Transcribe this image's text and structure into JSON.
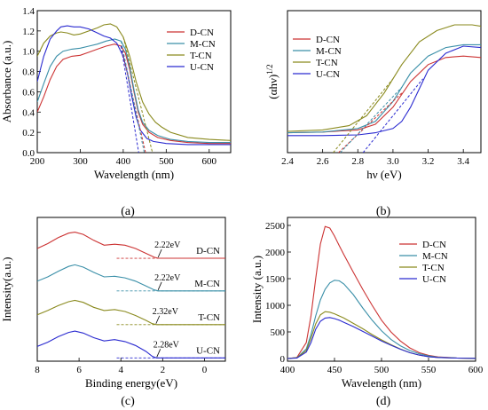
{
  "colors": {
    "D-CN": "#cc3333",
    "M-CN": "#3a8fa8",
    "T-CN": "#8a8a1e",
    "U-CN": "#2a2ad0"
  },
  "panel_labels": [
    "(a)",
    "(b)",
    "(c)",
    "(d)"
  ],
  "chart_data": [
    {
      "type": "line",
      "panel": "a",
      "xlabel": "Wavelength (nm)",
      "ylabel": "Absorbance (a.u.)",
      "xlim": [
        200,
        650
      ],
      "ylim": [
        0,
        1.4
      ],
      "xticks": [
        200,
        300,
        400,
        500,
        600
      ],
      "yticks": [
        0.0,
        0.2,
        0.4,
        0.6,
        0.8,
        1.0,
        1.2,
        1.4
      ],
      "legend": "top-right",
      "series": [
        {
          "name": "D-CN",
          "x": [
            200,
            215,
            230,
            245,
            260,
            280,
            300,
            320,
            340,
            360,
            380,
            395,
            405,
            415,
            425,
            435,
            445,
            460,
            480,
            510,
            550,
            600,
            650
          ],
          "y": [
            0.4,
            0.55,
            0.72,
            0.85,
            0.92,
            0.95,
            0.96,
            0.99,
            1.02,
            1.05,
            1.07,
            1.05,
            0.98,
            0.82,
            0.6,
            0.4,
            0.28,
            0.2,
            0.15,
            0.12,
            0.1,
            0.09,
            0.09
          ]
        },
        {
          "name": "M-CN",
          "x": [
            200,
            215,
            230,
            245,
            260,
            280,
            300,
            320,
            340,
            360,
            380,
            395,
            405,
            415,
            425,
            435,
            445,
            460,
            480,
            510,
            550,
            600,
            650
          ],
          "y": [
            0.5,
            0.68,
            0.85,
            0.95,
            1.0,
            1.02,
            1.03,
            1.05,
            1.07,
            1.1,
            1.12,
            1.1,
            1.02,
            0.85,
            0.62,
            0.42,
            0.3,
            0.22,
            0.17,
            0.13,
            0.11,
            0.1,
            0.1
          ]
        },
        {
          "name": "T-CN",
          "x": [
            200,
            215,
            230,
            245,
            255,
            270,
            285,
            300,
            320,
            340,
            355,
            370,
            385,
            400,
            415,
            430,
            445,
            460,
            475,
            490,
            510,
            550,
            600,
            650
          ],
          "y": [
            0.95,
            1.08,
            1.15,
            1.18,
            1.19,
            1.18,
            1.16,
            1.17,
            1.2,
            1.23,
            1.26,
            1.27,
            1.24,
            1.14,
            0.95,
            0.7,
            0.5,
            0.38,
            0.3,
            0.25,
            0.2,
            0.15,
            0.13,
            0.12
          ]
        },
        {
          "name": "U-CN",
          "x": [
            200,
            215,
            230,
            245,
            255,
            270,
            285,
            300,
            320,
            340,
            355,
            370,
            385,
            400,
            410,
            420,
            430,
            440,
            455,
            470,
            500,
            550,
            600,
            650
          ],
          "y": [
            0.7,
            0.95,
            1.12,
            1.2,
            1.24,
            1.25,
            1.24,
            1.24,
            1.22,
            1.18,
            1.15,
            1.13,
            1.08,
            0.95,
            0.78,
            0.55,
            0.35,
            0.22,
            0.14,
            0.11,
            0.09,
            0.08,
            0.08,
            0.08
          ]
        }
      ],
      "tangents": [
        {
          "series": "D-CN",
          "x": [
            395,
            452
          ],
          "y": [
            1.05,
            0.0
          ]
        },
        {
          "series": "M-CN",
          "x": [
            395,
            449
          ],
          "y": [
            1.1,
            0.0
          ]
        },
        {
          "series": "T-CN",
          "x": [
            400,
            468
          ],
          "y": [
            1.14,
            0.0
          ]
        },
        {
          "series": "U-CN",
          "x": [
            395,
            436
          ],
          "y": [
            1.05,
            0.0
          ]
        }
      ]
    },
    {
      "type": "line",
      "panel": "b",
      "xlabel": "hν (eV)",
      "ylabel": "(αhν)",
      "ylabel_sup": "1/2",
      "xlim": [
        2.4,
        3.5
      ],
      "ylim": [
        0,
        1.0
      ],
      "xticks": [
        2.4,
        2.6,
        2.8,
        3.0,
        3.2,
        3.4
      ],
      "legend": "top-left",
      "series": [
        {
          "name": "D-CN",
          "x": [
            2.4,
            2.6,
            2.8,
            2.9,
            3.0,
            3.1,
            3.2,
            3.3,
            3.4,
            3.5
          ],
          "y": [
            0.14,
            0.145,
            0.16,
            0.2,
            0.32,
            0.5,
            0.62,
            0.67,
            0.68,
            0.67
          ]
        },
        {
          "name": "M-CN",
          "x": [
            2.4,
            2.6,
            2.8,
            2.9,
            3.0,
            3.1,
            3.2,
            3.3,
            3.4,
            3.5
          ],
          "y": [
            0.14,
            0.145,
            0.17,
            0.22,
            0.36,
            0.56,
            0.68,
            0.74,
            0.76,
            0.76
          ]
        },
        {
          "name": "T-CN",
          "x": [
            2.4,
            2.6,
            2.75,
            2.85,
            2.95,
            3.05,
            3.15,
            3.25,
            3.35,
            3.45,
            3.5
          ],
          "y": [
            0.15,
            0.16,
            0.19,
            0.26,
            0.42,
            0.62,
            0.78,
            0.86,
            0.9,
            0.9,
            0.89
          ]
        },
        {
          "name": "U-CN",
          "x": [
            2.4,
            2.6,
            2.8,
            2.9,
            3.0,
            3.05,
            3.1,
            3.15,
            3.2,
            3.3,
            3.4,
            3.5
          ],
          "y": [
            0.12,
            0.12,
            0.125,
            0.14,
            0.17,
            0.22,
            0.32,
            0.45,
            0.58,
            0.7,
            0.75,
            0.74
          ]
        }
      ],
      "tangents": [
        {
          "series": "D-CN",
          "x": [
            2.69,
            3.05
          ],
          "y": [
            0.0,
            0.42
          ]
        },
        {
          "series": "M-CN",
          "x": [
            2.7,
            3.05
          ],
          "y": [
            0.0,
            0.46
          ]
        },
        {
          "series": "T-CN",
          "x": [
            2.66,
            3.0
          ],
          "y": [
            0.0,
            0.52
          ]
        },
        {
          "series": "U-CN",
          "x": [
            2.83,
            3.17
          ],
          "y": [
            0.0,
            0.52
          ]
        }
      ]
    },
    {
      "type": "line",
      "panel": "c",
      "xlabel": "Binding energy(eV)",
      "ylabel": "Intensity(a.u.)",
      "xlim": [
        8,
        -1
      ],
      "ylim": [
        0,
        4.4
      ],
      "xticks": [
        8,
        6,
        4,
        2,
        0
      ],
      "reversed_x": true,
      "series": [
        {
          "name": "D-CN",
          "label": "D-CN",
          "x": [
            8,
            7.5,
            7,
            6.5,
            6.2,
            5.8,
            5.3,
            4.8,
            4.3,
            3.8,
            3.3,
            2.8,
            2.4,
            2.2,
            2.0,
            1.5,
            1,
            0.5,
            0,
            -0.5,
            -1
          ],
          "y": [
            3.45,
            3.6,
            3.78,
            3.92,
            3.95,
            3.88,
            3.7,
            3.55,
            3.58,
            3.55,
            3.45,
            3.3,
            3.18,
            3.15,
            3.15,
            3.15,
            3.15,
            3.15,
            3.15,
            3.15,
            3.15
          ]
        },
        {
          "name": "M-CN",
          "label": "M-CN",
          "x": [
            8,
            7.5,
            7,
            6.5,
            6.2,
            5.8,
            5.3,
            4.8,
            4.3,
            3.8,
            3.3,
            2.8,
            2.4,
            2.2,
            2.0,
            1.5,
            1,
            0.5,
            0,
            -0.5,
            -1
          ],
          "y": [
            2.45,
            2.58,
            2.75,
            2.9,
            2.95,
            2.88,
            2.72,
            2.58,
            2.6,
            2.55,
            2.45,
            2.3,
            2.18,
            2.15,
            2.15,
            2.15,
            2.15,
            2.15,
            2.15,
            2.15,
            2.15
          ]
        },
        {
          "name": "T-CN",
          "label": "T-CN",
          "x": [
            8,
            7.5,
            7,
            6.5,
            6.2,
            5.8,
            5.3,
            4.8,
            4.3,
            3.8,
            3.3,
            2.8,
            2.5,
            2.3,
            2.0,
            1.5,
            1,
            0.5,
            0,
            -0.5,
            -1
          ],
          "y": [
            1.42,
            1.55,
            1.7,
            1.82,
            1.86,
            1.8,
            1.65,
            1.55,
            1.58,
            1.52,
            1.4,
            1.25,
            1.15,
            1.12,
            1.12,
            1.12,
            1.12,
            1.12,
            1.12,
            1.12,
            1.12
          ]
        },
        {
          "name": "U-CN",
          "label": "U-CN",
          "x": [
            8,
            7.5,
            7,
            6.5,
            6.2,
            5.8,
            5.3,
            4.8,
            4.3,
            3.8,
            3.3,
            2.8,
            2.5,
            2.3,
            2.0,
            1.5,
            1,
            0.5,
            0,
            -0.5,
            -1
          ],
          "y": [
            0.45,
            0.58,
            0.75,
            0.88,
            0.92,
            0.86,
            0.72,
            0.62,
            0.66,
            0.6,
            0.48,
            0.3,
            0.15,
            0.1,
            0.1,
            0.1,
            0.1,
            0.1,
            0.1,
            0.1,
            0.1
          ]
        }
      ],
      "annotations": [
        {
          "series": "D-CN",
          "text": "2.22eV",
          "x": 2.22
        },
        {
          "series": "M-CN",
          "text": "2.22eV",
          "x": 2.22
        },
        {
          "series": "T-CN",
          "text": "2.32eV",
          "x": 2.32
        },
        {
          "series": "U-CN",
          "text": "2.28eV",
          "x": 2.28
        }
      ]
    },
    {
      "type": "line",
      "panel": "d",
      "xlabel": "Wavelength (nm)",
      "ylabel": "Intensity (a.u.)",
      "xlim": [
        400,
        600
      ],
      "ylim": [
        -50,
        2650
      ],
      "xticks": [
        400,
        450,
        500,
        550,
        600
      ],
      "yticks": [
        0,
        500,
        1000,
        1500,
        2000,
        2500
      ],
      "legend": "top-right",
      "series": [
        {
          "name": "D-CN",
          "x": [
            400,
            410,
            420,
            425,
            430,
            435,
            440,
            445,
            450,
            455,
            460,
            470,
            480,
            490,
            500,
            510,
            520,
            530,
            540,
            550,
            560,
            580,
            600
          ],
          "y": [
            0,
            20,
            300,
            800,
            1500,
            2150,
            2480,
            2450,
            2300,
            2120,
            1950,
            1620,
            1300,
            1000,
            720,
            500,
            330,
            200,
            110,
            60,
            30,
            10,
            5
          ]
        },
        {
          "name": "M-CN",
          "x": [
            400,
            410,
            420,
            425,
            430,
            435,
            440,
            445,
            450,
            455,
            460,
            470,
            480,
            490,
            500,
            510,
            520,
            530,
            540,
            550,
            560,
            580,
            600
          ],
          "y": [
            0,
            15,
            180,
            450,
            800,
            1100,
            1300,
            1420,
            1470,
            1460,
            1400,
            1200,
            950,
            720,
            520,
            360,
            240,
            150,
            90,
            50,
            25,
            10,
            5
          ]
        },
        {
          "name": "T-CN",
          "x": [
            400,
            410,
            420,
            425,
            430,
            435,
            440,
            445,
            450,
            455,
            460,
            470,
            480,
            490,
            500,
            510,
            520,
            530,
            540,
            550,
            560,
            580,
            600
          ],
          "y": [
            0,
            15,
            150,
            380,
            650,
            820,
            880,
            870,
            840,
            800,
            760,
            660,
            560,
            450,
            350,
            260,
            180,
            110,
            65,
            35,
            20,
            8,
            4
          ]
        },
        {
          "name": "U-CN",
          "x": [
            400,
            410,
            420,
            425,
            430,
            435,
            440,
            445,
            450,
            455,
            460,
            470,
            480,
            490,
            500,
            510,
            520,
            530,
            540,
            550,
            560,
            580,
            600
          ],
          "y": [
            0,
            10,
            120,
            300,
            550,
            700,
            760,
            770,
            750,
            720,
            680,
            600,
            510,
            420,
            330,
            250,
            175,
            110,
            65,
            35,
            20,
            8,
            4
          ]
        }
      ]
    }
  ]
}
